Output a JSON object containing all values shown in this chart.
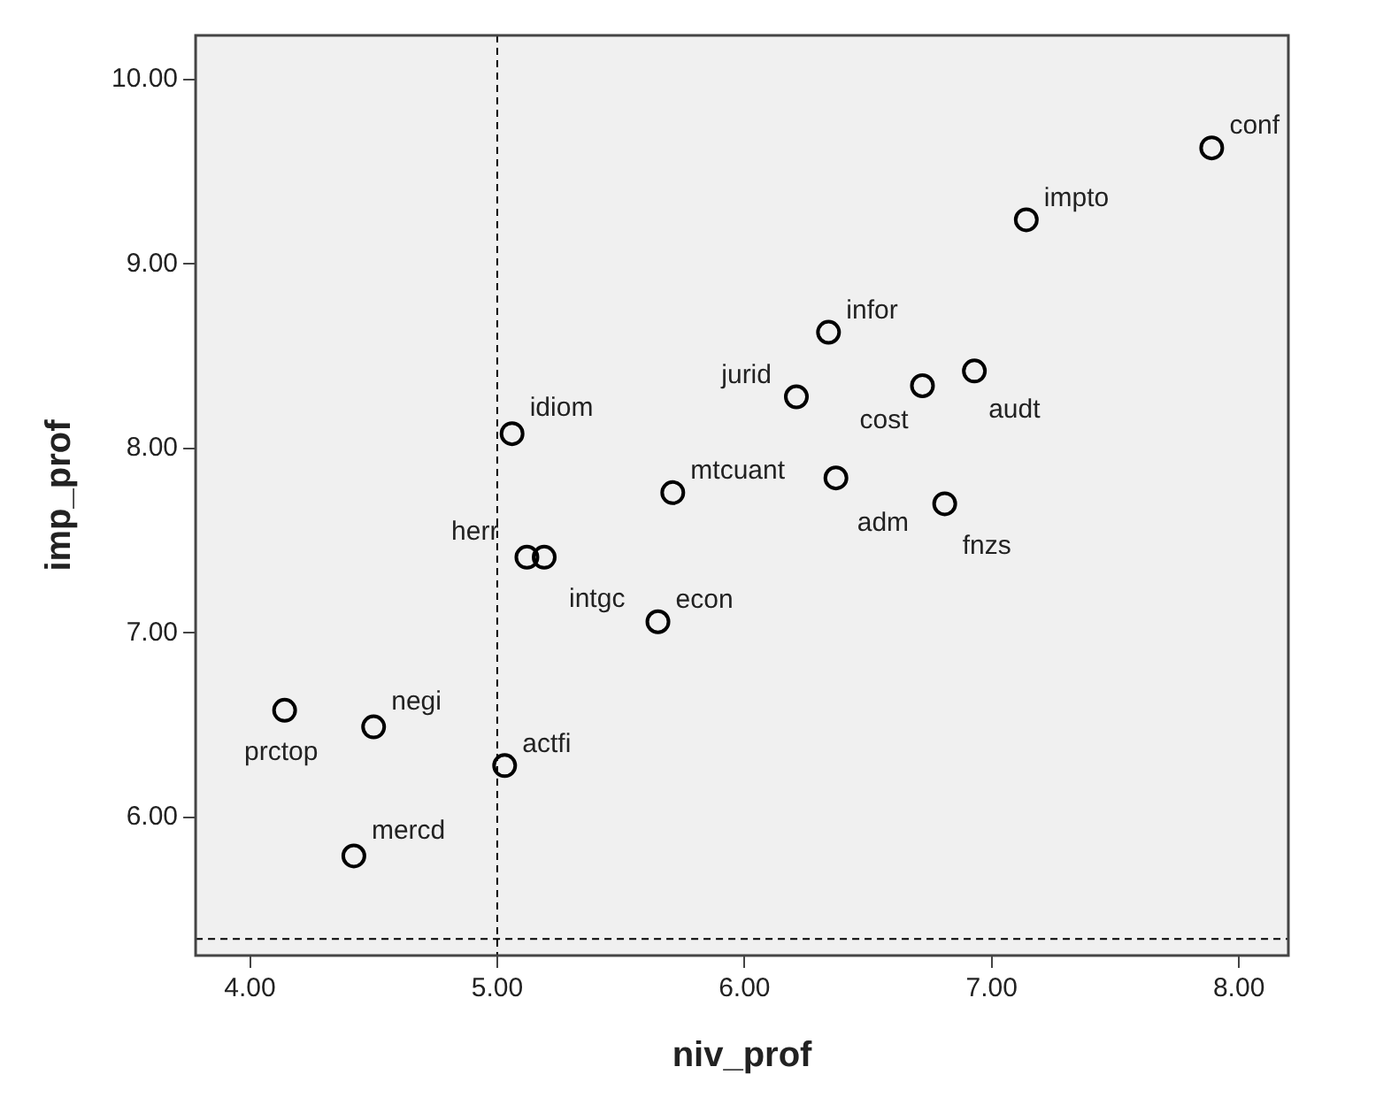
{
  "chart_data": {
    "type": "scatter",
    "xlabel": "niv_prof",
    "ylabel": "imp_prof",
    "marker": "circle",
    "legend": false,
    "xlim": [
      3.78,
      8.2
    ],
    "ylim": [
      5.25,
      10.24
    ],
    "xticks": [
      {
        "value": 4,
        "label": "4.00"
      },
      {
        "value": 5,
        "label": "5.00"
      },
      {
        "value": 6,
        "label": "6.00"
      },
      {
        "value": 7,
        "label": "7.00"
      },
      {
        "value": 8,
        "label": "8.00"
      }
    ],
    "yticks": [
      {
        "value": 6,
        "label": "6.00"
      },
      {
        "value": 7,
        "label": "7.00"
      },
      {
        "value": 8,
        "label": "8.00"
      },
      {
        "value": 9,
        "label": "9.00"
      },
      {
        "value": 10,
        "label": "10.00"
      }
    ],
    "ref_lines": [
      {
        "axis": "x",
        "value": 5.0,
        "line_style": "dashed",
        "color": "#000000"
      },
      {
        "axis": "y",
        "value": 5.34,
        "line_style": "dashed",
        "color": "#000000"
      }
    ],
    "series": [
      {
        "name": "conf",
        "color": "#000000",
        "x": [
          7.89
        ],
        "values": [
          9.63
        ]
      },
      {
        "name": "impto",
        "color": "#000000",
        "x": [
          7.14
        ],
        "values": [
          9.24
        ]
      },
      {
        "name": "infor",
        "color": "#000000",
        "x": [
          6.34
        ],
        "values": [
          8.63
        ]
      },
      {
        "name": "jurid",
        "color": "#000000",
        "x": [
          6.21
        ],
        "values": [
          8.28
        ]
      },
      {
        "name": "cost",
        "color": "#000000",
        "x": [
          6.72
        ],
        "values": [
          8.34
        ]
      },
      {
        "name": "audt",
        "color": "#000000",
        "x": [
          6.93
        ],
        "values": [
          8.42
        ]
      },
      {
        "name": "idiom",
        "color": "#000000",
        "x": [
          5.06
        ],
        "values": [
          8.08
        ]
      },
      {
        "name": "mtcuant",
        "color": "#000000",
        "x": [
          5.71
        ],
        "values": [
          7.76
        ]
      },
      {
        "name": "adm",
        "color": "#000000",
        "x": [
          6.37
        ],
        "values": [
          7.84
        ]
      },
      {
        "name": "fnzs",
        "color": "#000000",
        "x": [
          6.81
        ],
        "values": [
          7.7
        ]
      },
      {
        "name": "herr",
        "color": "#000000",
        "x": [
          5.12
        ],
        "values": [
          7.41
        ]
      },
      {
        "name": "intgc",
        "color": "#000000",
        "x": [
          5.19
        ],
        "values": [
          7.41
        ]
      },
      {
        "name": "econ",
        "color": "#000000",
        "x": [
          5.65
        ],
        "values": [
          7.06
        ]
      },
      {
        "name": "prctop",
        "color": "#000000",
        "x": [
          4.14
        ],
        "values": [
          6.58
        ]
      },
      {
        "name": "negi",
        "color": "#000000",
        "x": [
          4.5
        ],
        "values": [
          6.49
        ]
      },
      {
        "name": "actfi",
        "color": "#000000",
        "x": [
          5.03
        ],
        "values": [
          6.28
        ]
      },
      {
        "name": "mercd",
        "color": "#000000",
        "x": [
          4.42
        ],
        "values": [
          5.79
        ]
      }
    ]
  }
}
